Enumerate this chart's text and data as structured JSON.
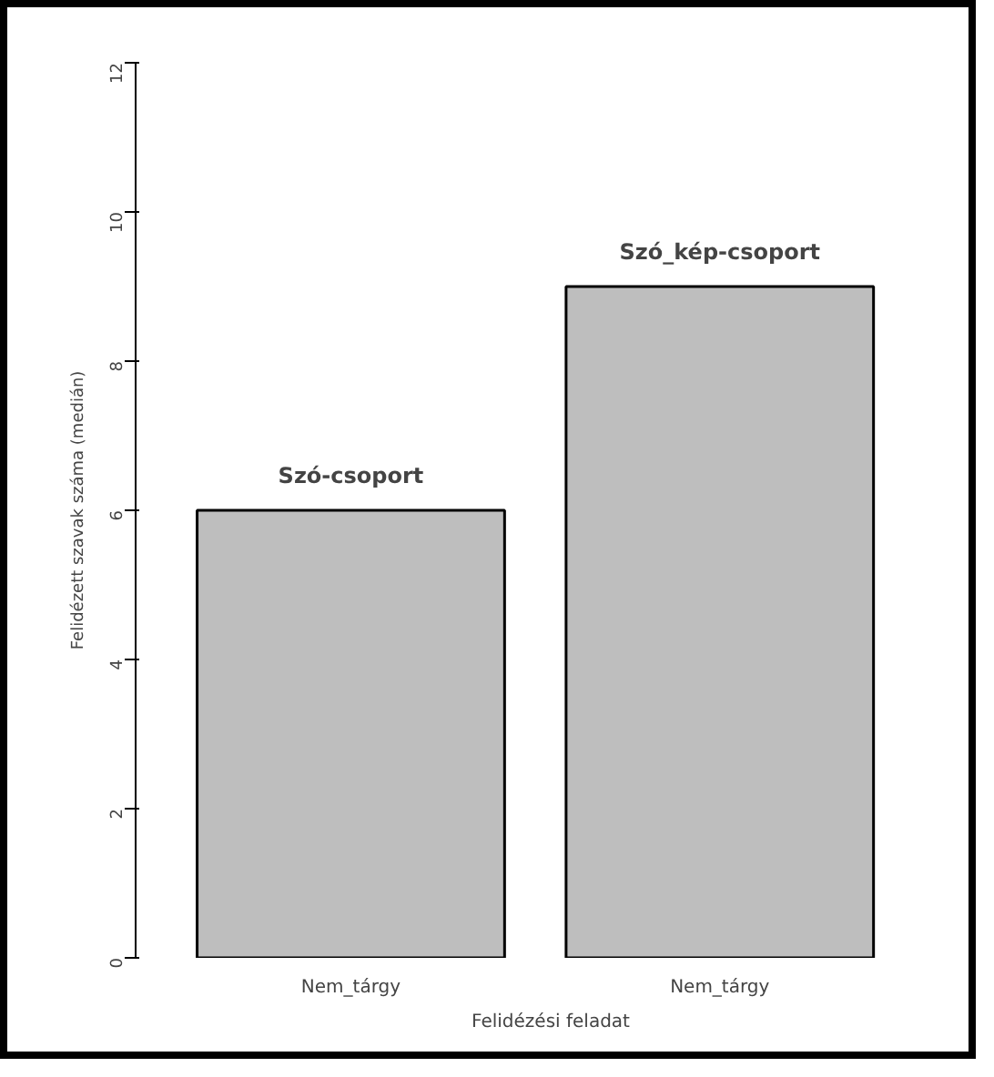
{
  "chart_data": {
    "type": "bar",
    "xlabel": "Felidézési feladat",
    "ylabel": "Felidézett szavak száma (medián)",
    "categories": [
      "Nem_tárgy",
      "Nem_tárgy"
    ],
    "values": [
      6,
      9
    ],
    "color": "#bebebe",
    "ylim": [
      0,
      12
    ],
    "yticks": [
      0,
      2,
      4,
      6,
      8,
      10,
      12
    ],
    "grid": false,
    "annotations": [
      "Szó-csoport",
      "Szó_kép-csoport"
    ]
  }
}
